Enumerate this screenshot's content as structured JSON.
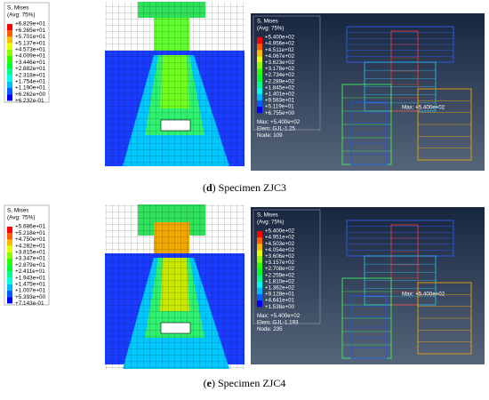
{
  "panels": [
    {
      "caption": {
        "prefix": "(",
        "label": "d",
        "text": ") Specimen ZJC3"
      },
      "left_legend": {
        "title": "S, Mises",
        "subtitle": "(Avg: 75%)",
        "values": [
          "+6.829e+01",
          "+6.265e+01",
          "+5.701e+01",
          "+5.137e+01",
          "+4.573e+01",
          "+4.009e+01",
          "+3.446e+01",
          "+2.882e+01",
          "+2.318e+01",
          "+1.754e+01",
          "+1.190e+01",
          "+6.262e+00",
          "+6.232e-01"
        ]
      },
      "right_legend": {
        "title": "S, Mises",
        "subtitle": "(Avg: 75%)",
        "values": [
          "+5.400e+02",
          "+4.956e+02",
          "+4.511e+02",
          "+4.067e+02",
          "+3.623e+02",
          "+3.178e+02",
          "+2.734e+02",
          "+2.289e+02",
          "+1.845e+02",
          "+1.401e+02",
          "+9.563e+01",
          "+5.119e+01",
          "+6.755e+00"
        ],
        "info": [
          "Max: +5.400e+02",
          "Elem: GJL-1.25",
          "Node: 109"
        ]
      },
      "annotation": "Max: +5.400e+02"
    },
    {
      "caption": {
        "prefix": "(",
        "label": "e",
        "text": ") Specimen ZJC4"
      },
      "left_legend": {
        "title": "S, Mises",
        "subtitle": "(Avg: 75%)",
        "values": [
          "+5.686e+01",
          "+5.218e+01",
          "+4.750e+01",
          "+4.282e+01",
          "+3.815e+01",
          "+3.347e+01",
          "+2.879e+01",
          "+2.411e+01",
          "+1.943e+01",
          "+1.475e+01",
          "+1.007e+01",
          "+5.393e+00",
          "+7.143e-01"
        ]
      },
      "right_legend": {
        "title": "S, Mises",
        "subtitle": "(Avg: 75%)",
        "values": [
          "+5.400e+02",
          "+4.951e+02",
          "+4.503e+02",
          "+4.054e+02",
          "+3.606e+02",
          "+3.157e+02",
          "+2.708e+02",
          "+2.259e+02",
          "+1.810e+02",
          "+1.362e+02",
          "+9.128e+01",
          "+4.641e+01",
          "+1.538e+00"
        ],
        "info": [
          "Max: +5.400e+02",
          "Elem: GJL-1.193",
          "Node: 235"
        ]
      },
      "annotation": "Max: +5.400e+02"
    }
  ]
}
